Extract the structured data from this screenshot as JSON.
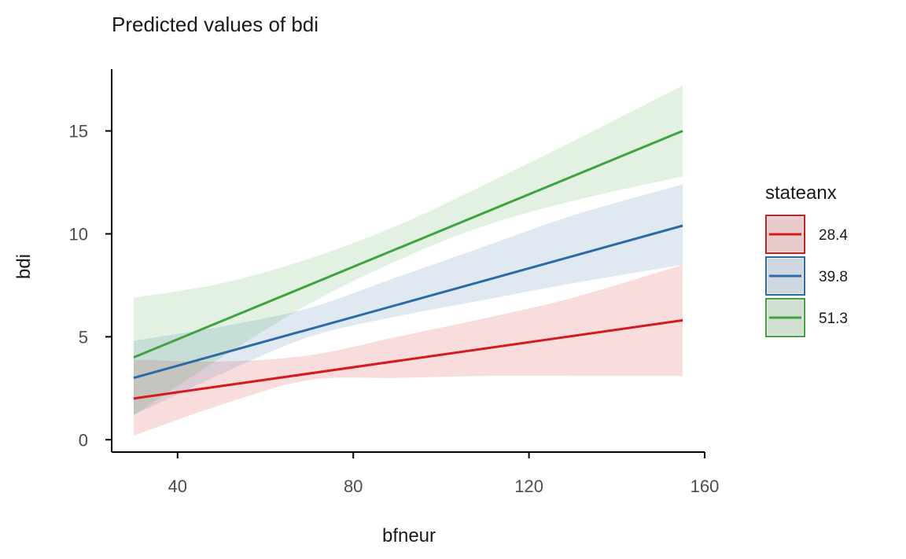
{
  "chart_data": {
    "type": "line",
    "title": "Predicted values of bdi",
    "xlabel": "bfneur",
    "ylabel": "bdi",
    "xlim": [
      25,
      160
    ],
    "ylim": [
      -0.6,
      18
    ],
    "x_ticks": [
      40,
      80,
      120,
      160
    ],
    "y_ticks": [
      0,
      5,
      10,
      15
    ],
    "grid": false,
    "legend": {
      "title": "stateanx",
      "placement": "right"
    },
    "series": [
      {
        "name": "28.4",
        "color": "#D7191C",
        "x": [
          30,
          155
        ],
        "y": [
          2.0,
          5.8
        ],
        "ci_x": [
          30,
          50,
          70,
          90,
          110,
          130,
          155
        ],
        "ci_low": [
          0.2,
          1.7,
          2.9,
          3.0,
          3.1,
          3.1,
          3.1
        ],
        "ci_high": [
          3.9,
          3.8,
          4.1,
          5.0,
          5.9,
          6.9,
          8.5
        ]
      },
      {
        "name": "39.8",
        "color": "#2C6AA8",
        "x": [
          30,
          155
        ],
        "y": [
          3.0,
          10.4
        ],
        "ci_x": [
          30,
          50,
          70,
          90,
          110,
          130,
          155
        ],
        "ci_low": [
          1.2,
          3.2,
          5.0,
          6.0,
          6.8,
          7.6,
          8.5
        ],
        "ci_high": [
          4.8,
          5.5,
          6.4,
          7.9,
          9.4,
          10.9,
          12.4
        ]
      },
      {
        "name": "51.3",
        "color": "#3FA33F",
        "x": [
          30,
          155
        ],
        "y": [
          4.0,
          15.0
        ],
        "ci_x": [
          30,
          50,
          70,
          90,
          110,
          130,
          155
        ],
        "ci_low": [
          1.2,
          4.0,
          6.6,
          8.7,
          10.4,
          11.6,
          12.8
        ],
        "ci_high": [
          6.9,
          7.6,
          8.8,
          10.4,
          12.4,
          14.5,
          17.2
        ]
      }
    ]
  }
}
